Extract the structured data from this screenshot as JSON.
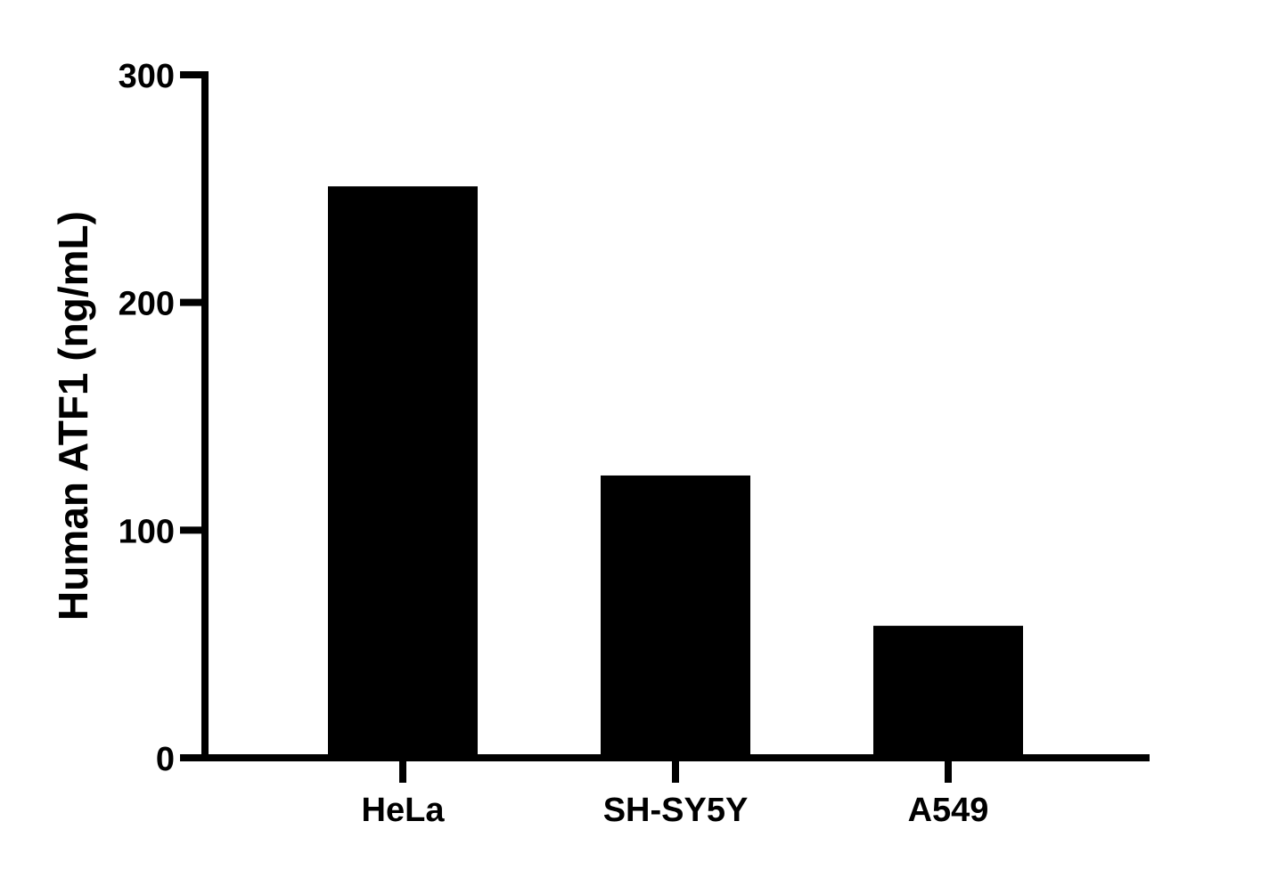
{
  "chart_data": {
    "type": "bar",
    "title": "",
    "categories": [
      "HeLa",
      "SH-SY5Y",
      "A549"
    ],
    "values": [
      251,
      124,
      58
    ],
    "ylabel": "Human ATF1 (ng/mL)",
    "xlabel": "",
    "ylim": [
      0,
      300
    ],
    "yticks": [
      0,
      100,
      200,
      300
    ],
    "grid": false,
    "bar_color": "#000000",
    "axis_color": "#000000"
  }
}
